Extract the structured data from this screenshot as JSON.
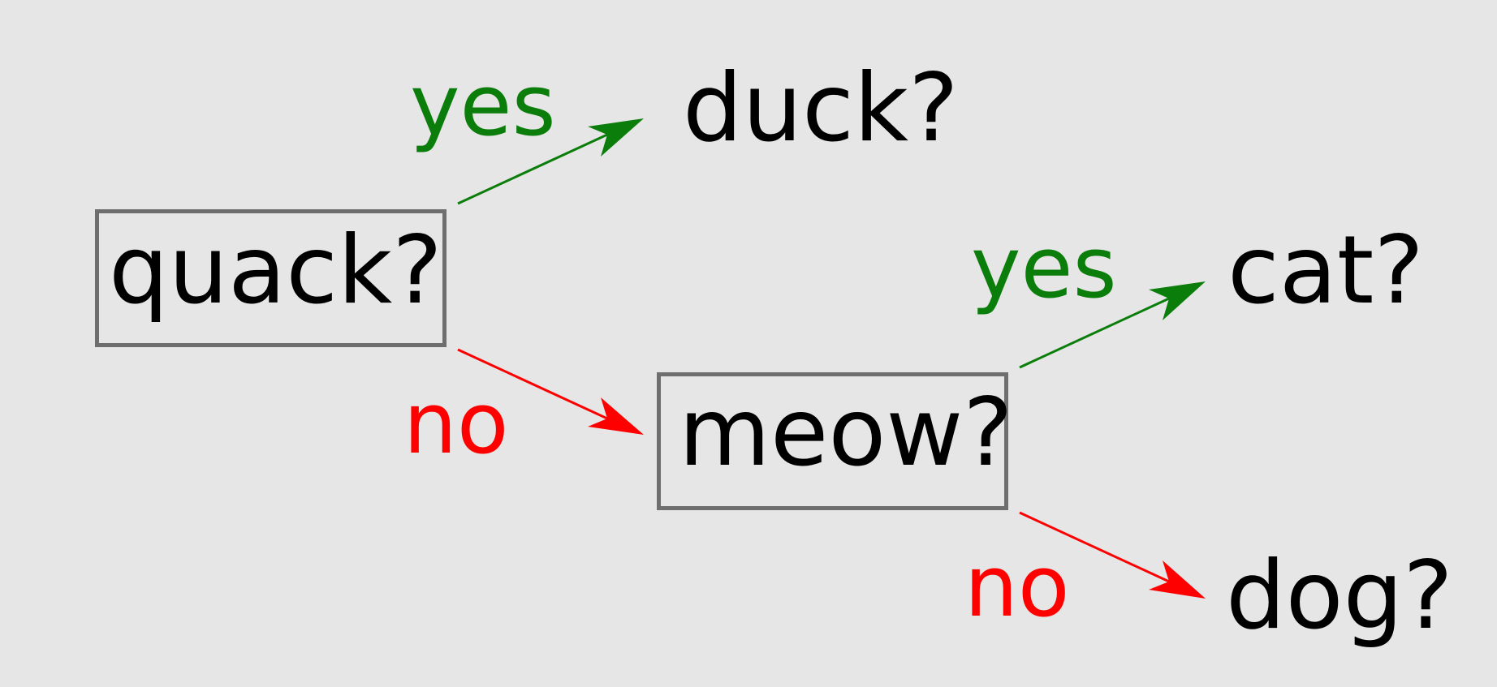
{
  "colors": {
    "background": "#e6e6e6",
    "box_border": "#6e6e6e",
    "yes": "#0a7d0a",
    "no": "#ff0000",
    "text": "#000000"
  },
  "nodes": {
    "quack": "quack?",
    "duck": "duck?",
    "meow": "meow?",
    "cat": "cat?",
    "dog": "dog?"
  },
  "edges": {
    "quack_yes": "yes",
    "quack_no": "no",
    "meow_yes": "yes",
    "meow_no": "no"
  }
}
